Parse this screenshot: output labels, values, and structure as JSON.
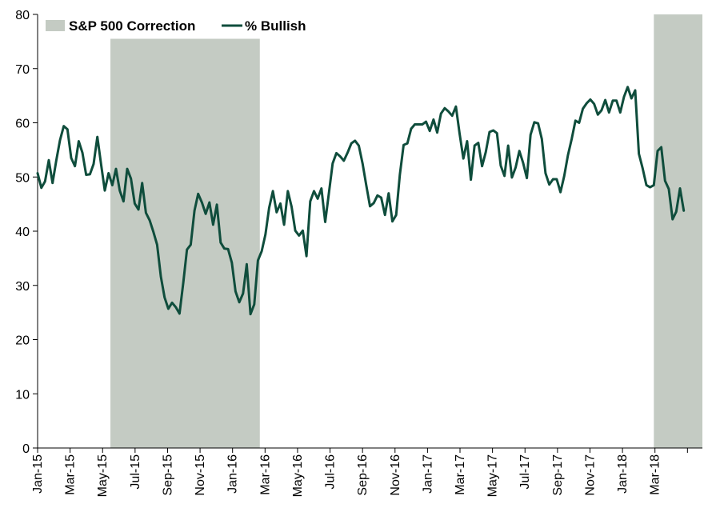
{
  "chart_data": {
    "type": "line",
    "ylim": [
      0,
      80
    ],
    "y_ticks": [
      "0",
      "10",
      "20",
      "30",
      "40",
      "50",
      "60",
      "70",
      "80"
    ],
    "x_tick_labels": [
      "Jan-15",
      "Mar-15",
      "May-15",
      "Jul-15",
      "Sep-15",
      "Nov-15",
      "Jan-16",
      "Mar-16",
      "May-16",
      "Jul-16",
      "Sep-16",
      "Nov-16",
      "Jan-17",
      "Mar-17",
      "May-17",
      "Jul-17",
      "Sep-17",
      "Nov-17",
      "Jan-18",
      "Mar-18"
    ],
    "x_range_weeks": [
      0,
      178
    ],
    "legend": {
      "correction_label": "S&P 500 Correction",
      "series_label": "% Bullish",
      "placement": "top-left"
    },
    "correction_periods": [
      {
        "start_week": 19.5,
        "end_week": 59.5
      },
      {
        "start_week": 165,
        "end_week": 178
      }
    ],
    "series": [
      {
        "name": "% Bullish",
        "color": "#0f4d3c",
        "values": [
          50.7,
          48.0,
          49.2,
          53.1,
          48.9,
          53.0,
          56.8,
          59.4,
          58.8,
          53.5,
          52.0,
          56.6,
          54.5,
          50.4,
          50.5,
          52.4,
          57.4,
          52.3,
          47.5,
          50.7,
          48.5,
          51.5,
          47.5,
          45.5,
          51.5,
          49.7,
          45.1,
          44.0,
          48.9,
          43.4,
          42.0,
          39.9,
          37.5,
          31.6,
          27.8,
          25.7,
          26.8,
          26.0,
          24.8,
          30.5,
          36.6,
          37.5,
          43.8,
          46.9,
          45.3,
          43.2,
          45.3,
          41.2,
          44.9,
          37.9,
          36.8,
          36.7,
          34.2,
          28.9,
          26.9,
          28.5,
          33.9,
          24.7,
          26.5,
          34.6,
          36.3,
          39.4,
          44.3,
          47.4,
          43.5,
          45.1,
          41.2,
          47.4,
          44.5,
          40.1,
          39.2,
          40.1,
          35.4,
          45.5,
          47.4,
          46.0,
          47.9,
          41.7,
          47.0,
          52.5,
          54.4,
          53.8,
          53.0,
          54.5,
          56.2,
          56.7,
          55.8,
          52.5,
          48.5,
          44.6,
          45.2,
          46.6,
          46.2,
          43.0,
          47.0,
          41.8,
          43.0,
          50.4,
          55.9,
          56.2,
          58.9,
          59.7,
          59.7,
          59.7,
          60.2,
          58.5,
          60.6,
          58.2,
          61.7,
          62.7,
          62.1,
          61.3,
          63.0,
          58.0,
          53.4,
          56.6,
          49.5,
          55.8,
          56.3,
          52.0,
          54.6,
          58.3,
          58.6,
          58.1,
          52.1,
          50.2,
          55.8,
          49.9,
          51.8,
          54.8,
          52.6,
          49.8,
          57.8,
          60.1,
          59.9,
          57.0,
          50.7,
          48.6,
          49.6,
          49.6,
          47.2,
          50.2,
          54.0,
          57.0,
          60.4,
          60.0,
          62.6,
          63.6,
          64.3,
          63.5,
          61.5,
          62.3,
          64.2,
          61.9,
          64.1,
          64.1,
          61.9,
          64.8,
          66.6,
          64.5,
          66.0,
          54.3,
          51.6,
          48.5,
          48.1,
          48.5,
          54.8,
          55.5,
          49.3,
          47.8,
          42.2,
          43.6,
          47.9,
          43.8
        ]
      }
    ]
  }
}
